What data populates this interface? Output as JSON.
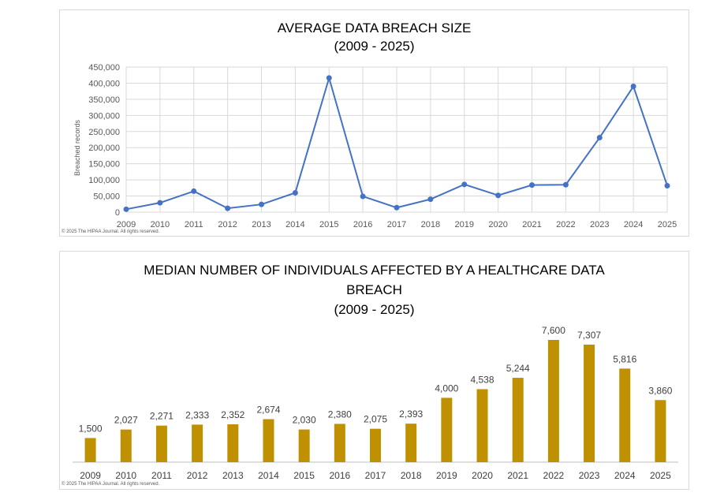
{
  "chart_data": [
    {
      "type": "line",
      "title": "AVERAGE DATA BREACH SIZE",
      "subtitle": "(2009 - 2025)",
      "ylabel": "Breached records",
      "xlabel": "",
      "x": [
        "2009",
        "2010",
        "2011",
        "2012",
        "2013",
        "2014",
        "2015",
        "2016",
        "2017",
        "2018",
        "2019",
        "2020",
        "2021",
        "2022",
        "2023",
        "2024",
        "2025"
      ],
      "series": [
        {
          "values": [
            9000,
            29000,
            65000,
            12000,
            24000,
            60000,
            416000,
            49000,
            14000,
            40000,
            86000,
            52000,
            84000,
            85000,
            231000,
            390000,
            82000
          ]
        }
      ],
      "ylim": [
        0,
        450000
      ],
      "yticks": [
        "0",
        "50,000",
        "100,000",
        "150,000",
        "200,000",
        "250,000",
        "300,000",
        "350,000",
        "400,000",
        "450,000"
      ],
      "grid": true,
      "color": "#4472c4",
      "copyright": "© 2025 The HIPAA Journal. All rights reserved."
    },
    {
      "type": "bar",
      "title_line1": "MEDIAN NUMBER OF INDIVIDUALS AFFECTED BY A HEALTHCARE DATA",
      "title_line2": "BREACH",
      "subtitle": "(2009 - 2025)",
      "categories": [
        "2009",
        "2010",
        "2011",
        "2012",
        "2013",
        "2014",
        "2015",
        "2016",
        "2017",
        "2018",
        "2019",
        "2020",
        "2021",
        "2022",
        "2023",
        "2024",
        "2025"
      ],
      "values": [
        1500,
        2027,
        2271,
        2333,
        2352,
        2674,
        2030,
        2380,
        2075,
        2393,
        4000,
        4538,
        5244,
        7600,
        7307,
        5816,
        3860
      ],
      "data_labels": [
        "1,500",
        "2,027",
        "2,271",
        "2,333",
        "2,352",
        "2,674",
        "2,030",
        "2,380",
        "2,075",
        "2,393",
        "4,000",
        "4,538",
        "5,244",
        "7,600",
        "7,307",
        "5,816",
        "3,860"
      ],
      "ylim": [
        0,
        8000
      ],
      "grid": false,
      "color": "#bf9000",
      "copyright": "© 2025 The HIPAA Journal. All rights reserved."
    }
  ]
}
